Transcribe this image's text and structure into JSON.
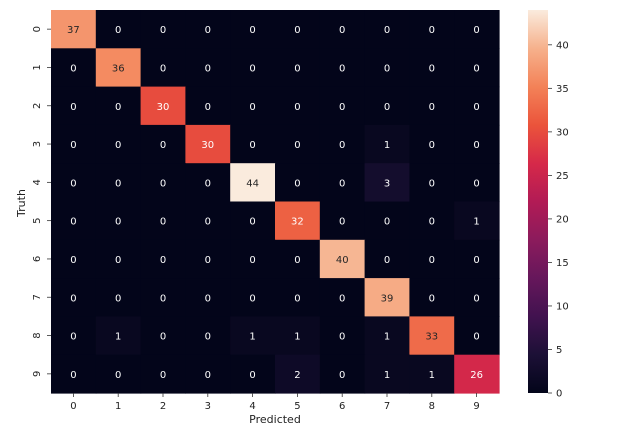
{
  "chart_data": {
    "type": "heatmap",
    "title": "",
    "xlabel": "Predicted",
    "ylabel": "Truth",
    "x_tick_labels": [
      "0",
      "1",
      "2",
      "3",
      "4",
      "5",
      "6",
      "7",
      "8",
      "9"
    ],
    "y_tick_labels": [
      "0",
      "1",
      "2",
      "3",
      "4",
      "5",
      "6",
      "7",
      "8",
      "9"
    ],
    "values": [
      [
        37,
        0,
        0,
        0,
        0,
        0,
        0,
        0,
        0,
        0
      ],
      [
        0,
        36,
        0,
        0,
        0,
        0,
        0,
        0,
        0,
        0
      ],
      [
        0,
        0,
        30,
        0,
        0,
        0,
        0,
        0,
        0,
        0
      ],
      [
        0,
        0,
        0,
        30,
        0,
        0,
        0,
        1,
        0,
        0
      ],
      [
        0,
        0,
        0,
        0,
        44,
        0,
        0,
        3,
        0,
        0
      ],
      [
        0,
        0,
        0,
        0,
        0,
        32,
        0,
        0,
        0,
        1
      ],
      [
        0,
        0,
        0,
        0,
        0,
        0,
        40,
        0,
        0,
        0
      ],
      [
        0,
        0,
        0,
        0,
        0,
        0,
        0,
        39,
        0,
        0
      ],
      [
        0,
        1,
        0,
        0,
        1,
        1,
        0,
        1,
        33,
        0
      ],
      [
        0,
        0,
        0,
        0,
        0,
        2,
        0,
        1,
        1,
        26
      ]
    ],
    "value_range": [
      0,
      44
    ],
    "colorbar": {
      "colormap": "rocket",
      "tick_values": [
        0,
        5,
        10,
        15,
        20,
        25,
        30,
        35,
        40
      ],
      "tick_labels": [
        "0",
        "5",
        "10",
        "15",
        "20",
        "25",
        "30",
        "35",
        "40"
      ]
    },
    "annotations": "cell values shown in each cell"
  }
}
